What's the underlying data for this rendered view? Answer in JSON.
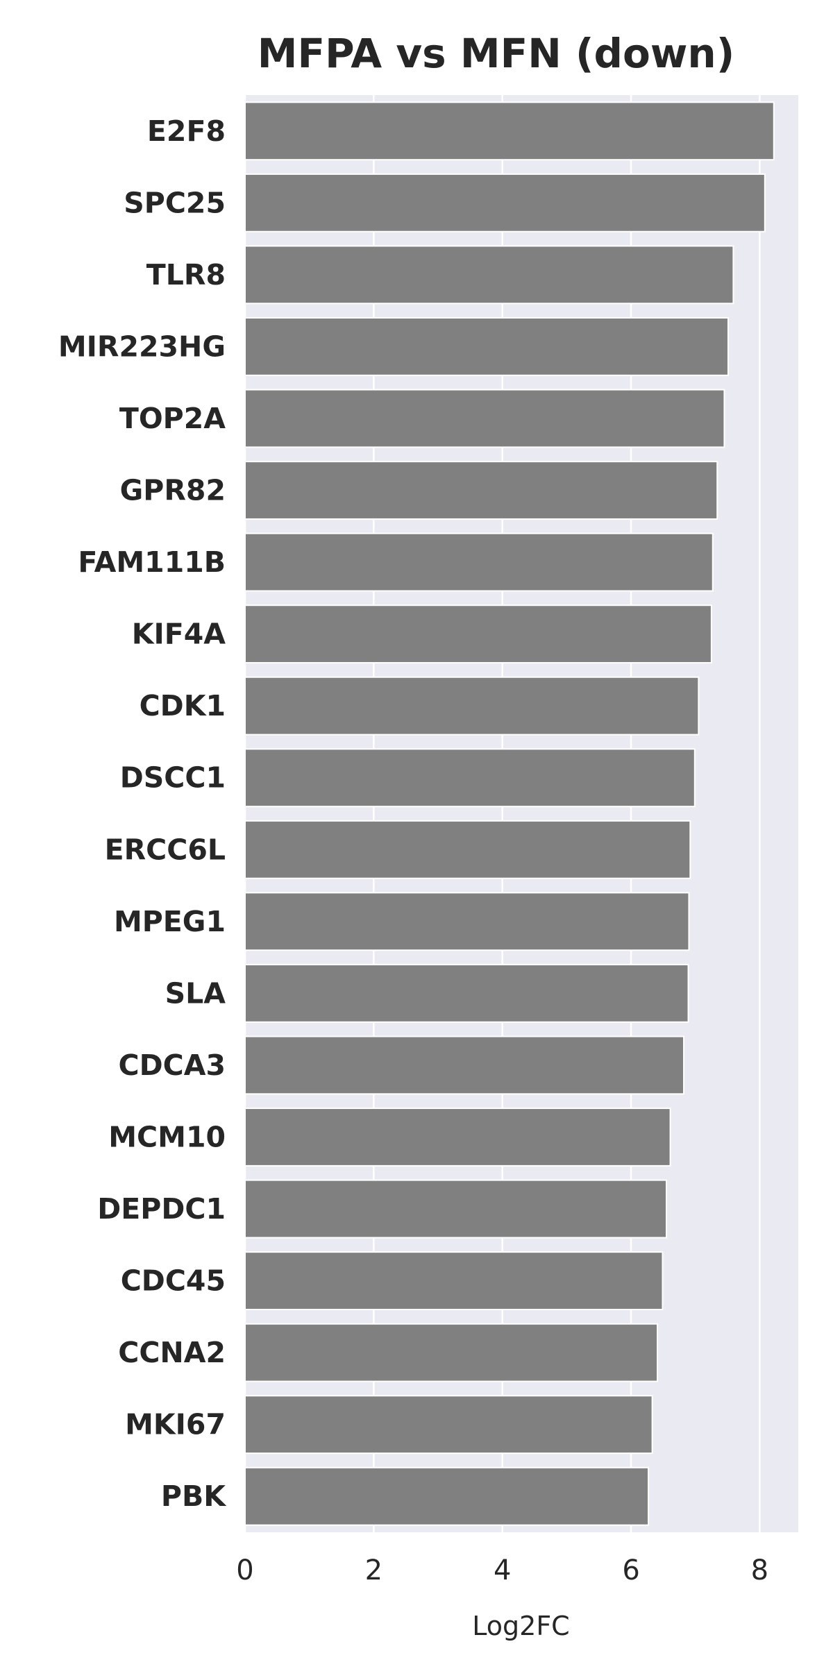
{
  "chart_data": {
    "type": "bar",
    "orientation": "horizontal",
    "title": "MFPA vs MFN (down)",
    "xlabel": "Log2FC",
    "ylabel": "",
    "xlim": [
      0,
      8.6
    ],
    "xticks": [
      0,
      2,
      4,
      6,
      8
    ],
    "grid": true,
    "legend": "none",
    "colors": {
      "bar": "#808080",
      "plot_background": "#eaeaf2",
      "grid": "#ffffff",
      "text": "#262626"
    },
    "categories": [
      "E2F8",
      "SPC25",
      "TLR8",
      "MIR223HG",
      "TOP2A",
      "GPR82",
      "FAM111B",
      "KIF4A",
      "CDK1",
      "DSCC1",
      "ERCC6L",
      "MPEG1",
      "SLA",
      "CDCA3",
      "MCM10",
      "DEPDC1",
      "CDC45",
      "CCNA2",
      "MKI67",
      "PBK"
    ],
    "values": [
      8.22,
      8.08,
      7.59,
      7.51,
      7.45,
      7.34,
      7.27,
      7.25,
      7.05,
      6.99,
      6.92,
      6.9,
      6.89,
      6.82,
      6.61,
      6.55,
      6.49,
      6.41,
      6.33,
      6.27
    ]
  }
}
